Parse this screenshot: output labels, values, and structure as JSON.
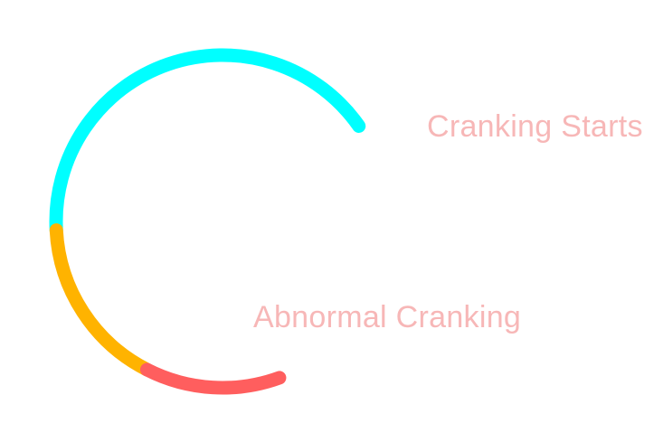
{
  "gauge": {
    "segments": [
      {
        "name": "cyan",
        "color": "#00FFFF",
        "from_deg": 120,
        "to_deg": 272
      },
      {
        "name": "amber",
        "color": "#FFB300",
        "from_deg": 272,
        "to_deg": 325
      },
      {
        "name": "red",
        "color": "#FF5E5E",
        "from_deg": 325,
        "to_deg": 380
      }
    ]
  },
  "labels": {
    "top": {
      "text": "Cranking Starts",
      "color": "#F7B7B7"
    },
    "bottom": {
      "text": "Abnormal Cranking",
      "color": "#F7B7B7"
    }
  }
}
